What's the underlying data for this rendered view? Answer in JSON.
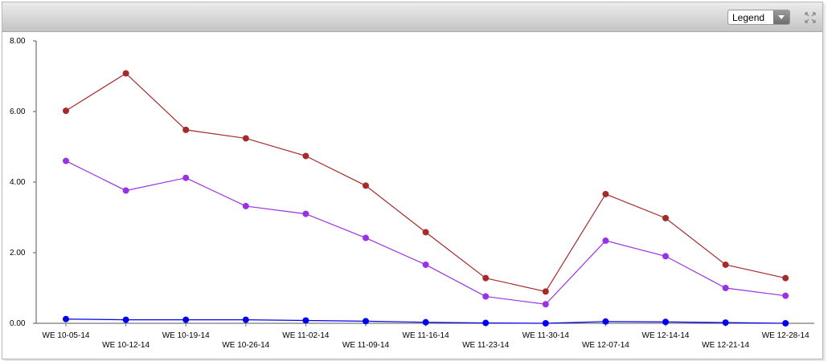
{
  "toolbar": {
    "legend_label": "Legend",
    "expand_icon": "expand-arrows-icon"
  },
  "chart_data": {
    "type": "line",
    "title": "",
    "xlabel": "",
    "ylabel": "",
    "ylim": [
      0,
      8
    ],
    "yticks": [
      "0.00",
      "2.00",
      "4.00",
      "6.00",
      "8.00"
    ],
    "categories": [
      "WE 10-05-14",
      "WE 10-12-14",
      "WE 10-19-14",
      "WE 10-26-14",
      "WE 11-02-14",
      "WE 11-09-14",
      "WE 11-16-14",
      "WE 11-23-14",
      "WE 11-30-14",
      "WE 12-07-14",
      "WE 12-14-14",
      "WE 12-21-14",
      "WE 12-28-14"
    ],
    "grid": false,
    "legend": "hidden",
    "series": [
      {
        "color": "#a52a2a",
        "values": [
          6.02,
          7.08,
          5.48,
          5.24,
          4.74,
          3.9,
          2.58,
          1.28,
          0.9,
          3.66,
          2.98,
          1.66,
          1.28
        ]
      },
      {
        "color": "#9932e6",
        "values": [
          4.6,
          3.76,
          4.12,
          3.32,
          3.1,
          2.42,
          1.66,
          0.76,
          0.54,
          2.34,
          1.9,
          1.0,
          0.78
        ]
      },
      {
        "color": "#0000ee",
        "values": [
          0.12,
          0.1,
          0.1,
          0.1,
          0.08,
          0.06,
          0.03,
          0.01,
          0.0,
          0.05,
          0.04,
          0.02,
          0.0
        ]
      }
    ]
  }
}
